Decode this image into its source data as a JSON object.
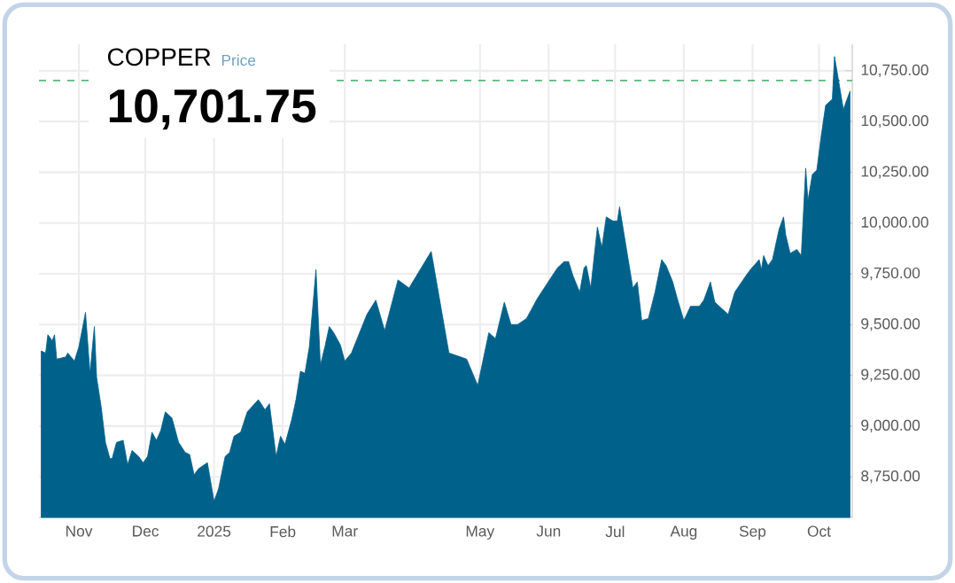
{
  "chart_data": {
    "type": "area",
    "title": "COPPER",
    "subtitle": "Price",
    "x": [
      "2024-10-15",
      "2024-10-17",
      "2024-10-18",
      "2024-10-20",
      "2024-10-21",
      "2024-10-22",
      "2024-10-26",
      "2024-10-27",
      "2024-10-30",
      "2024-11-01",
      "2024-11-04",
      "2024-11-06",
      "2024-11-08",
      "2024-11-09",
      "2024-11-11",
      "2024-11-13",
      "2024-11-15",
      "2024-11-16",
      "2024-11-18",
      "2024-11-21",
      "2024-11-23",
      "2024-11-25",
      "2024-11-28",
      "2024-11-30",
      "2024-12-02",
      "2024-12-04",
      "2024-12-06",
      "2024-12-08",
      "2024-12-10",
      "2024-12-13",
      "2024-12-16",
      "2024-12-19",
      "2024-12-21",
      "2024-12-23",
      "2024-12-25",
      "2024-12-29",
      "2025-01-01",
      "2025-01-03",
      "2025-01-06",
      "2025-01-08",
      "2025-01-10",
      "2025-01-13",
      "2025-01-16",
      "2025-01-21",
      "2025-01-24",
      "2025-01-26",
      "2025-01-29",
      "2025-01-31",
      "2025-02-02",
      "2025-02-05",
      "2025-02-07",
      "2025-02-09",
      "2025-02-11",
      "2025-02-13",
      "2025-02-16",
      "2025-02-18",
      "2025-02-20",
      "2025-02-22",
      "2025-02-24",
      "2025-02-27",
      "2025-03-01",
      "2025-03-04",
      "2025-03-11",
      "2025-03-15",
      "2025-03-19",
      "2025-03-25",
      "2025-03-30",
      "2025-04-04",
      "2025-04-09",
      "2025-04-17",
      "2025-04-25",
      "2025-04-30",
      "2025-05-05",
      "2025-05-08",
      "2025-05-12",
      "2025-05-15",
      "2025-05-18",
      "2025-05-22",
      "2025-05-27",
      "2025-06-05",
      "2025-06-08",
      "2025-06-10",
      "2025-06-12",
      "2025-06-15",
      "2025-06-17",
      "2025-06-18",
      "2025-06-20",
      "2025-06-23",
      "2025-06-25",
      "2025-06-27",
      "2025-06-30",
      "2025-07-02",
      "2025-07-03",
      "2025-07-06",
      "2025-07-09",
      "2025-07-11",
      "2025-07-13",
      "2025-07-16",
      "2025-07-19",
      "2025-07-22",
      "2025-07-24",
      "2025-07-27",
      "2025-07-29",
      "2025-08-01",
      "2025-08-04",
      "2025-08-08",
      "2025-08-10",
      "2025-08-13",
      "2025-08-15",
      "2025-08-18",
      "2025-08-21",
      "2025-08-24",
      "2025-08-29",
      "2025-08-31",
      "2025-09-04",
      "2025-09-05",
      "2025-09-06",
      "2025-09-08",
      "2025-09-10",
      "2025-09-13",
      "2025-09-15",
      "2025-09-16",
      "2025-09-18",
      "2025-09-21",
      "2025-09-23",
      "2025-09-25",
      "2025-09-26",
      "2025-09-28",
      "2025-09-30",
      "2025-10-02",
      "2025-10-04",
      "2025-10-07",
      "2025-10-08",
      "2025-10-10",
      "2025-10-12",
      "2025-10-14",
      "2025-10-15"
    ],
    "series": [
      {
        "color": "#00618b",
        "values": [
          9370,
          9360,
          9450,
          9420,
          9450,
          9330,
          9340,
          9360,
          9320,
          9390,
          9560,
          9260,
          9490,
          9240,
          9100,
          8920,
          8840,
          8840,
          8920,
          8930,
          8810,
          8880,
          8850,
          8820,
          8850,
          8970,
          8930,
          8980,
          9070,
          9040,
          8920,
          8870,
          8860,
          8760,
          8790,
          8820,
          8630,
          8690,
          8850,
          8870,
          8950,
          8970,
          9070,
          9130,
          9080,
          9110,
          8850,
          8950,
          8910,
          9030,
          9130,
          9270,
          9260,
          9390,
          9770,
          9300,
          9390,
          9490,
          9460,
          9400,
          9320,
          9360,
          9550,
          9620,
          9470,
          9720,
          9680,
          9770,
          9860,
          9360,
          9330,
          9200,
          9460,
          9430,
          9610,
          9500,
          9500,
          9530,
          9630,
          9780,
          9810,
          9810,
          9740,
          9660,
          9780,
          9790,
          9680,
          9980,
          9880,
          10030,
          10010,
          10010,
          10080,
          9880,
          9680,
          9710,
          9520,
          9530,
          9660,
          9820,
          9790,
          9710,
          9630,
          9520,
          9590,
          9590,
          9620,
          9710,
          9610,
          9580,
          9550,
          9660,
          9740,
          9770,
          9820,
          9770,
          9840,
          9790,
          9820,
          9970,
          10030,
          9940,
          9850,
          9870,
          9840,
          10270,
          10110,
          10240,
          10260,
          10430,
          10580,
          10610,
          10820,
          10690,
          10560,
          10620,
          10650
        ]
      }
    ],
    "xlim": [
      "2024-10-14",
      "2025-10-16"
    ],
    "xticks": [
      {
        "value": "2024-11-01",
        "label": "Nov"
      },
      {
        "value": "2024-12-01",
        "label": "Dec"
      },
      {
        "value": "2025-01-01",
        "label": "2025"
      },
      {
        "value": "2025-02-01",
        "label": "Feb"
      },
      {
        "value": "2025-03-01",
        "label": "Mar"
      },
      {
        "value": "2025-05-01",
        "label": "May"
      },
      {
        "value": "2025-06-01",
        "label": "Jun"
      },
      {
        "value": "2025-07-01",
        "label": "Jul"
      },
      {
        "value": "2025-08-01",
        "label": "Aug"
      },
      {
        "value": "2025-09-01",
        "label": "Sep"
      },
      {
        "value": "2025-10-01",
        "label": "Oct"
      }
    ],
    "ylim": [
      8550,
      10880
    ],
    "yticks": [
      {
        "value": 8750,
        "label": "8,750.00"
      },
      {
        "value": 9000,
        "label": "9,000.00"
      },
      {
        "value": 9250,
        "label": "9,250.00"
      },
      {
        "value": 9500,
        "label": "9,500.00"
      },
      {
        "value": 9750,
        "label": "9,750.00"
      },
      {
        "value": 10000,
        "label": "10,000.00"
      },
      {
        "value": 10250,
        "label": "10,250.00"
      },
      {
        "value": 10500,
        "label": "10,500.00"
      },
      {
        "value": 10750,
        "label": "10,750.00"
      }
    ],
    "ref_lines": [
      {
        "axis": "y",
        "value": 10701.75,
        "label": "10,701.75",
        "color": "#1a9c4a",
        "line_style": "dashed"
      }
    ],
    "grid": true
  }
}
